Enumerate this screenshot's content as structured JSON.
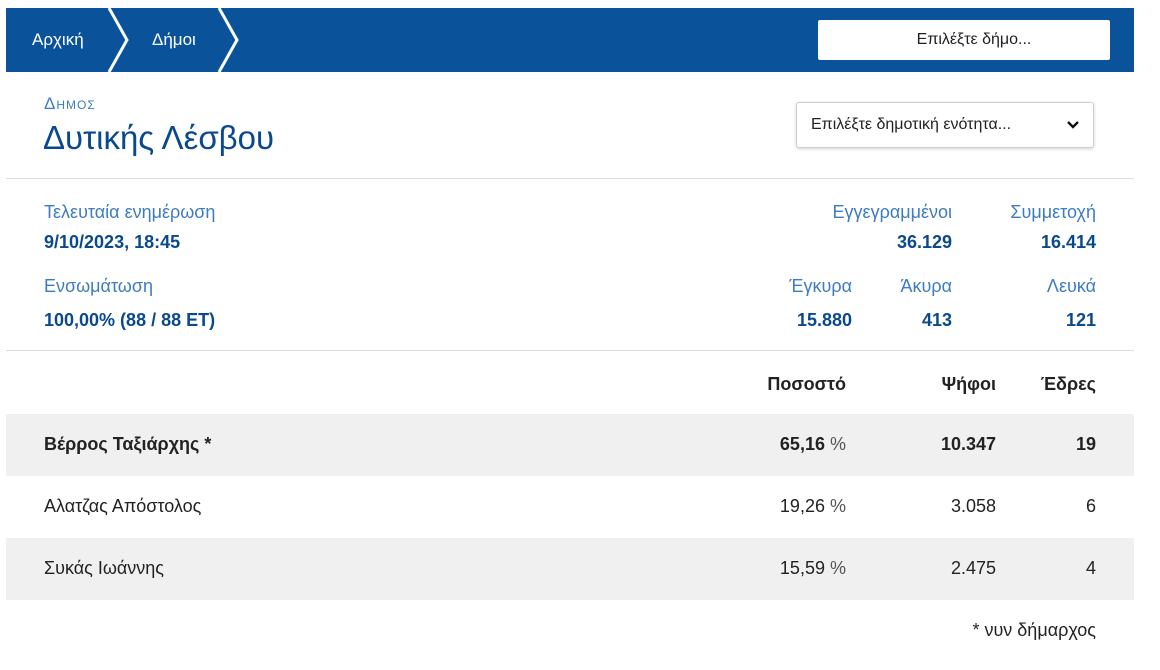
{
  "nav": {
    "breadcrumbs": [
      {
        "label": "Αρχική"
      },
      {
        "label": "Δήμοι"
      }
    ],
    "municipality_select_placeholder": "Επιλέξτε δήμο...",
    "bar_color": "#0a5299"
  },
  "header": {
    "kicker": "Δημος",
    "title": "Δυτικής Λέσβου",
    "unit_select_placeholder": "Επιλέξτε δημοτική ενότητα..."
  },
  "stats": {
    "last_update_label": "Τελευταία ενημέρωση",
    "last_update_value": "9/10/2023, 18:45",
    "integration_label": "Ενσωμάτωση",
    "integration_value": "100,00% (88 / 88 ΕΤ)",
    "registered_label": "Εγγεγραμμένοι",
    "registered_value": "36.129",
    "turnout_label": "Συμμετοχή",
    "turnout_value": "16.414",
    "valid_label": "Έγκυρα",
    "valid_value": "15.880",
    "invalid_label": "Άκυρα",
    "invalid_value": "413",
    "blank_label": "Λευκά",
    "blank_value": "121"
  },
  "results": {
    "columns": {
      "percent": "Ποσοστό",
      "votes": "Ψήφοι",
      "seats": "Έδρες"
    },
    "percent_suffix": "%",
    "rows": [
      {
        "name": "Βέρρος Ταξιάρχης *",
        "percent": "65,16",
        "votes": "10.347",
        "seats": "19"
      },
      {
        "name": "Αλατζας Απόστολος",
        "percent": "19,26",
        "votes": "3.058",
        "seats": "6"
      },
      {
        "name": "Συκάς Ιωάννης",
        "percent": "15,59",
        "votes": "2.475",
        "seats": "4"
      }
    ],
    "footnote": "* νυν δήμαρχος"
  }
}
